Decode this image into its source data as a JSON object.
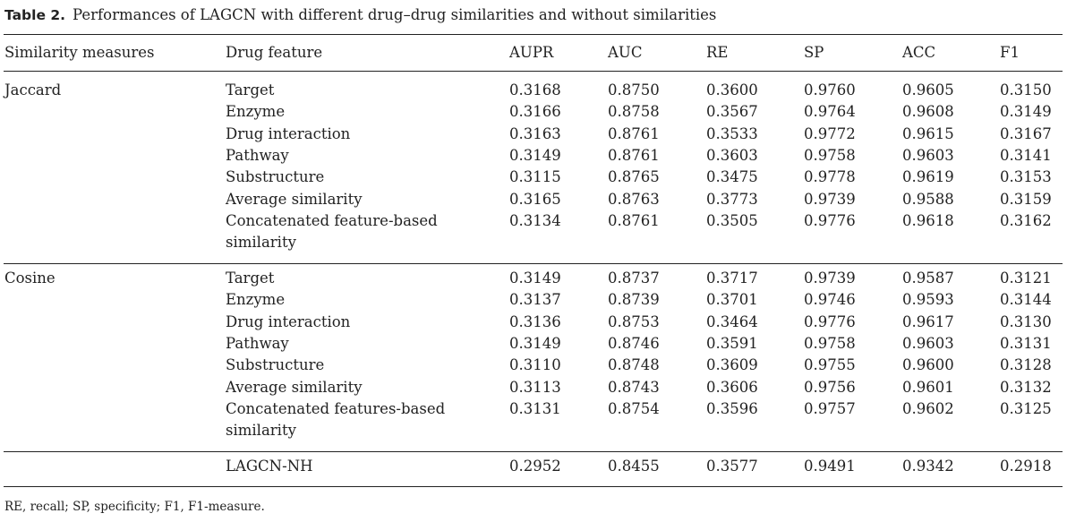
{
  "caption": {
    "label": "Table 2.",
    "text": "Performances of LAGCN with different drug–drug similarities and without similarities"
  },
  "headers": [
    "Similarity measures",
    "Drug feature",
    "AUPR",
    "AUC",
    "RE",
    "SP",
    "ACC",
    "F1"
  ],
  "groups": [
    {
      "name": "Jaccard",
      "rows": [
        {
          "feature": "Target",
          "values": [
            "0.3168",
            "0.8750",
            "0.3600",
            "0.9760",
            "0.9605",
            "0.3150"
          ]
        },
        {
          "feature": "Enzyme",
          "values": [
            "0.3166",
            "0.8758",
            "0.3567",
            "0.9764",
            "0.9608",
            "0.3149"
          ]
        },
        {
          "feature": "Drug interaction",
          "values": [
            "0.3163",
            "0.8761",
            "0.3533",
            "0.9772",
            "0.9615",
            "0.3167"
          ]
        },
        {
          "feature": "Pathway",
          "values": [
            "0.3149",
            "0.8761",
            "0.3603",
            "0.9758",
            "0.9603",
            "0.3141"
          ]
        },
        {
          "feature": "Substructure",
          "values": [
            "0.3115",
            "0.8765",
            "0.3475",
            "0.9778",
            "0.9619",
            "0.3153"
          ]
        },
        {
          "feature": "Average similarity",
          "values": [
            "0.3165",
            "0.8763",
            "0.3773",
            "0.9739",
            "0.9588",
            "0.3159"
          ]
        },
        {
          "feature": "Concatenated feature-based similarity",
          "values": [
            "0.3134",
            "0.8761",
            "0.3505",
            "0.9776",
            "0.9618",
            "0.3162"
          ]
        }
      ]
    },
    {
      "name": "Cosine",
      "rows": [
        {
          "feature": "Target",
          "values": [
            "0.3149",
            "0.8737",
            "0.3717",
            "0.9739",
            "0.9587",
            "0.3121"
          ]
        },
        {
          "feature": "Enzyme",
          "values": [
            "0.3137",
            "0.8739",
            "0.3701",
            "0.9746",
            "0.9593",
            "0.3144"
          ]
        },
        {
          "feature": "Drug interaction",
          "values": [
            "0.3136",
            "0.8753",
            "0.3464",
            "0.9776",
            "0.9617",
            "0.3130"
          ]
        },
        {
          "feature": "Pathway",
          "values": [
            "0.3149",
            "0.8746",
            "0.3591",
            "0.9758",
            "0.9603",
            "0.3131"
          ]
        },
        {
          "feature": "Substructure",
          "values": [
            "0.3110",
            "0.8748",
            "0.3609",
            "0.9755",
            "0.9600",
            "0.3128"
          ]
        },
        {
          "feature": "Average similarity",
          "values": [
            "0.3113",
            "0.8743",
            "0.3606",
            "0.9756",
            "0.9601",
            "0.3132"
          ]
        },
        {
          "feature": "Concatenated features-based similarity",
          "values": [
            "0.3131",
            "0.8754",
            "0.3596",
            "0.9757",
            "0.9602",
            "0.3125"
          ]
        }
      ]
    },
    {
      "name": "",
      "rows": [
        {
          "feature": "LAGCN-NH",
          "values": [
            "0.2952",
            "0.8455",
            "0.3577",
            "0.9491",
            "0.9342",
            "0.2918"
          ]
        }
      ]
    }
  ],
  "footnote": "RE, recall; SP, specificity; F1, F1-measure."
}
